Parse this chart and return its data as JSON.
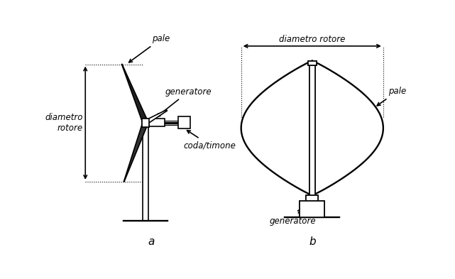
{
  "label_a": "a",
  "label_b": "b",
  "annotation_pale_a": "pale",
  "annotation_generatore_a": "generatore",
  "annotation_coda": "coda/timone",
  "annotation_diametro_a": [
    "diametro",
    "rotore"
  ],
  "annotation_pale_b": "pale",
  "annotation_generatore_b": "generatore",
  "annotation_diametro_b": "diametro rotore",
  "line_color": "black",
  "bg_color": "white"
}
